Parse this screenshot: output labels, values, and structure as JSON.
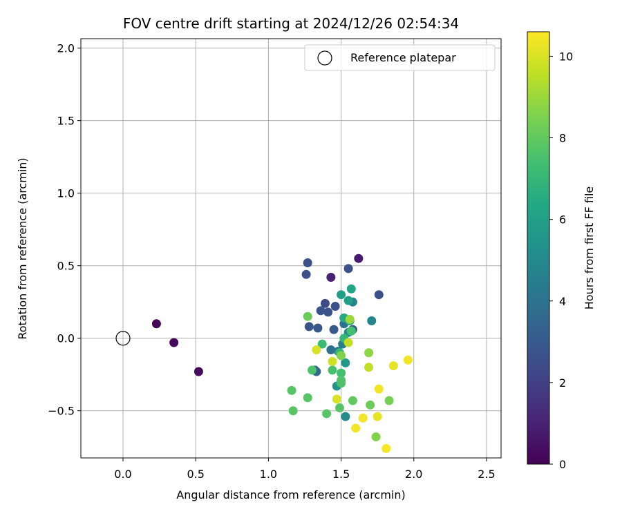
{
  "chart_data": {
    "type": "scatter",
    "title": "FOV centre drift starting at 2024/12/26 02:54:34",
    "xlabel": "Angular distance from reference (arcmin)",
    "ylabel": "Rotation from reference (arcmin)",
    "xlim": [
      -0.29,
      2.6
    ],
    "ylim": [
      -0.825,
      2.065
    ],
    "xticks": [
      "0.0",
      "0.5",
      "1.0",
      "1.5",
      "2.0",
      "2.5"
    ],
    "xtick_values": [
      0,
      0.5,
      1.0,
      1.5,
      2.0,
      2.5
    ],
    "yticks": [
      "−0.5",
      "0.0",
      "0.5",
      "1.0",
      "1.5",
      "2.0"
    ],
    "ytick_values": [
      -0.5,
      0,
      0.5,
      1.0,
      1.5,
      2.0
    ],
    "grid": true,
    "legend": {
      "position": "top-right",
      "entries": [
        "Reference platepar"
      ]
    },
    "reference_point": {
      "x": 0.0,
      "y": 0.0,
      "label": "Reference platepar"
    },
    "colorbar": {
      "label": "Hours from first FF file",
      "range": [
        0,
        10.6
      ],
      "ticks": [
        "0",
        "2",
        "4",
        "6",
        "8",
        "10"
      ],
      "tick_values": [
        0,
        2,
        4,
        6,
        8,
        10
      ],
      "colormap": "viridis"
    },
    "points": [
      {
        "x": 0.23,
        "y": 0.1,
        "c": 0.1
      },
      {
        "x": 0.35,
        "y": -0.03,
        "c": 0.2
      },
      {
        "x": 0.52,
        "y": -0.23,
        "c": 0.3
      },
      {
        "x": 1.62,
        "y": 0.55,
        "c": 0.8
      },
      {
        "x": 1.43,
        "y": 0.42,
        "c": 1.0
      },
      {
        "x": 1.27,
        "y": 0.52,
        "c": 2.6
      },
      {
        "x": 1.26,
        "y": 0.44,
        "c": 2.6
      },
      {
        "x": 1.55,
        "y": 0.48,
        "c": 2.6
      },
      {
        "x": 1.76,
        "y": 0.3,
        "c": 2.6
      },
      {
        "x": 1.39,
        "y": 0.24,
        "c": 2.4
      },
      {
        "x": 1.36,
        "y": 0.19,
        "c": 2.7
      },
      {
        "x": 1.41,
        "y": 0.18,
        "c": 2.6
      },
      {
        "x": 1.46,
        "y": 0.22,
        "c": 2.6
      },
      {
        "x": 1.28,
        "y": 0.08,
        "c": 2.8
      },
      {
        "x": 1.34,
        "y": 0.07,
        "c": 2.9
      },
      {
        "x": 1.45,
        "y": 0.06,
        "c": 3.0
      },
      {
        "x": 1.52,
        "y": 0.14,
        "c": 3.2
      },
      {
        "x": 1.58,
        "y": 0.06,
        "c": 3.0
      },
      {
        "x": 1.32,
        "y": -0.22,
        "c": 3.4
      },
      {
        "x": 1.33,
        "y": -0.23,
        "c": 3.6
      },
      {
        "x": 1.43,
        "y": -0.08,
        "c": 4.0
      },
      {
        "x": 1.48,
        "y": -0.09,
        "c": 4.2
      },
      {
        "x": 1.51,
        "y": -0.04,
        "c": 4.4
      },
      {
        "x": 1.52,
        "y": 0.1,
        "c": 4.0
      },
      {
        "x": 1.58,
        "y": 0.25,
        "c": 4.6
      },
      {
        "x": 1.71,
        "y": 0.12,
        "c": 4.8
      },
      {
        "x": 1.55,
        "y": 0.04,
        "c": 5.0
      },
      {
        "x": 1.53,
        "y": -0.54,
        "c": 5.0
      },
      {
        "x": 1.47,
        "y": -0.33,
        "c": 5.4
      },
      {
        "x": 1.53,
        "y": -0.17,
        "c": 5.6
      },
      {
        "x": 1.5,
        "y": 0.3,
        "c": 6.0
      },
      {
        "x": 1.57,
        "y": 0.34,
        "c": 6.2
      },
      {
        "x": 1.55,
        "y": 0.26,
        "c": 6.0
      },
      {
        "x": 1.52,
        "y": 0.14,
        "c": 6.4
      },
      {
        "x": 1.56,
        "y": 0.12,
        "c": 6.6
      },
      {
        "x": 1.49,
        "y": -0.1,
        "c": 7.0
      },
      {
        "x": 1.37,
        "y": -0.04,
        "c": 7.2
      },
      {
        "x": 1.52,
        "y": -0.0,
        "c": 7.0
      },
      {
        "x": 1.57,
        "y": 0.05,
        "c": 7.4
      },
      {
        "x": 1.44,
        "y": -0.22,
        "c": 7.5
      },
      {
        "x": 1.5,
        "y": -0.24,
        "c": 7.4
      },
      {
        "x": 1.5,
        "y": -0.31,
        "c": 7.6
      },
      {
        "x": 1.3,
        "y": -0.22,
        "c": 7.6
      },
      {
        "x": 1.5,
        "y": -0.29,
        "c": 7.6
      },
      {
        "x": 1.16,
        "y": -0.36,
        "c": 7.8
      },
      {
        "x": 1.27,
        "y": -0.41,
        "c": 7.8
      },
      {
        "x": 1.49,
        "y": -0.48,
        "c": 7.8
      },
      {
        "x": 1.4,
        "y": -0.52,
        "c": 7.8
      },
      {
        "x": 1.17,
        "y": -0.5,
        "c": 7.8
      },
      {
        "x": 1.58,
        "y": -0.43,
        "c": 8.0
      },
      {
        "x": 1.7,
        "y": -0.46,
        "c": 8.2
      },
      {
        "x": 1.83,
        "y": -0.43,
        "c": 8.4
      },
      {
        "x": 1.27,
        "y": 0.15,
        "c": 8.2
      },
      {
        "x": 1.5,
        "y": -0.12,
        "c": 8.6
      },
      {
        "x": 1.69,
        "y": -0.1,
        "c": 8.8
      },
      {
        "x": 1.74,
        "y": -0.68,
        "c": 8.6
      },
      {
        "x": 1.56,
        "y": 0.13,
        "c": 9.0
      },
      {
        "x": 1.55,
        "y": -0.03,
        "c": 9.6
      },
      {
        "x": 1.69,
        "y": -0.2,
        "c": 9.6
      },
      {
        "x": 1.44,
        "y": -0.16,
        "c": 9.8
      },
      {
        "x": 1.33,
        "y": -0.08,
        "c": 10.0
      },
      {
        "x": 1.47,
        "y": -0.42,
        "c": 10.0
      },
      {
        "x": 1.86,
        "y": -0.19,
        "c": 10.2
      },
      {
        "x": 1.96,
        "y": -0.15,
        "c": 10.4
      },
      {
        "x": 1.76,
        "y": -0.35,
        "c": 10.4
      },
      {
        "x": 1.75,
        "y": -0.54,
        "c": 10.2
      },
      {
        "x": 1.65,
        "y": -0.55,
        "c": 10.4
      },
      {
        "x": 1.6,
        "y": -0.62,
        "c": 10.4
      },
      {
        "x": 1.81,
        "y": -0.76,
        "c": 10.5
      }
    ]
  }
}
